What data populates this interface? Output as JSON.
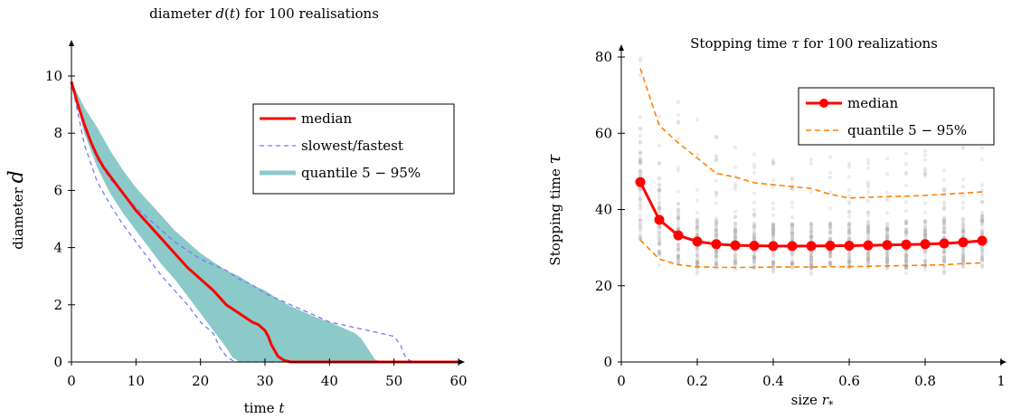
{
  "chart_data": [
    {
      "type": "line",
      "title": "diameter d(t) for 100 realisations",
      "xlabel": "time t",
      "ylabel": "diameter d",
      "xlim": [
        0,
        60
      ],
      "ylim": [
        0,
        11
      ],
      "xticks": [
        0,
        10,
        20,
        30,
        40,
        50,
        60
      ],
      "yticks": [
        0,
        2,
        4,
        6,
        8,
        10
      ],
      "grid": false,
      "legend_position": "right",
      "legend": [
        "median",
        "slowest/fastest",
        "quantile 5 − 95%"
      ],
      "series": [
        {
          "name": "median",
          "style": "line",
          "color": "#ff0000",
          "x": [
            0,
            1,
            2,
            3,
            4,
            5,
            6,
            7,
            8,
            9,
            10,
            12,
            14,
            16,
            18,
            20,
            22,
            24,
            26,
            28,
            29,
            30,
            30.5,
            31,
            32,
            33,
            34,
            60
          ],
          "y": [
            9.8,
            9.0,
            8.3,
            7.7,
            7.2,
            6.8,
            6.5,
            6.2,
            5.9,
            5.6,
            5.3,
            4.8,
            4.3,
            3.8,
            3.3,
            2.9,
            2.5,
            2.0,
            1.7,
            1.4,
            1.3,
            1.1,
            0.9,
            0.6,
            0.2,
            0.05,
            0,
            0
          ]
        },
        {
          "name": "slowest",
          "style": "dashed",
          "color": "#7777ff",
          "x": [
            0,
            2,
            4,
            6,
            8,
            10,
            12,
            14,
            16,
            18,
            20,
            22,
            24,
            26,
            28,
            30,
            32,
            34,
            36,
            38,
            40,
            42,
            44,
            46,
            48,
            50,
            51,
            51.5,
            52,
            53,
            60
          ],
          "y": [
            9.8,
            8.2,
            7.1,
            6.4,
            5.9,
            5.4,
            5.0,
            4.6,
            4.2,
            3.9,
            3.6,
            3.4,
            3.2,
            2.9,
            2.7,
            2.4,
            2.2,
            2.0,
            1.8,
            1.6,
            1.4,
            1.3,
            1.2,
            1.1,
            1.0,
            0.9,
            0.6,
            0.3,
            0.1,
            0,
            0
          ]
        },
        {
          "name": "fastest",
          "style": "dashed",
          "color": "#7777ff",
          "x": [
            0,
            2,
            4,
            6,
            8,
            10,
            12,
            14,
            16,
            18,
            20,
            22,
            23,
            24,
            25,
            26,
            27,
            28,
            29,
            30,
            60
          ],
          "y": [
            9.8,
            7.6,
            6.3,
            5.5,
            4.8,
            4.2,
            3.6,
            3.0,
            2.5,
            2.0,
            1.4,
            1.0,
            0.5,
            0.2,
            0.05,
            0,
            0,
            0,
            0,
            0,
            0
          ]
        }
      ],
      "band": {
        "name": "quantile 5 − 95%",
        "color": "#8ccaca",
        "x_upper": [
          0,
          2,
          4,
          6,
          8,
          10,
          12,
          14,
          16,
          18,
          20,
          22,
          24,
          26,
          28,
          30,
          32,
          34,
          36,
          38,
          40,
          42,
          44,
          45,
          46,
          47,
          48
        ],
        "upper": [
          9.8,
          8.9,
          8.2,
          7.4,
          6.7,
          6.1,
          5.6,
          5.1,
          4.6,
          4.2,
          3.8,
          3.5,
          3.2,
          3.0,
          2.7,
          2.5,
          2.2,
          1.95,
          1.75,
          1.55,
          1.4,
          1.2,
          1.0,
          0.8,
          0.45,
          0.1,
          0
        ],
        "x_lower": [
          0,
          2,
          4,
          6,
          8,
          10,
          12,
          14,
          16,
          18,
          20,
          22,
          24,
          25,
          26,
          27,
          48
        ],
        "lower": [
          9.8,
          8.0,
          6.8,
          5.9,
          5.2,
          4.6,
          4.0,
          3.4,
          2.9,
          2.3,
          1.7,
          1.1,
          0.5,
          0.15,
          0.02,
          0,
          0
        ]
      }
    },
    {
      "type": "scatter",
      "title": "Stopping time τ for 100 realizations",
      "xlabel": "size r*",
      "ylabel": "Stopping time τ",
      "xlim": [
        0,
        1
      ],
      "ylim": [
        0,
        82
      ],
      "xticks": [
        0,
        0.2,
        0.4,
        0.6,
        0.8,
        1
      ],
      "yticks": [
        0,
        20,
        40,
        60,
        80
      ],
      "grid": false,
      "legend_position": "top-right",
      "legend": [
        "median",
        "quantile 5 − 95%"
      ],
      "x": [
        0.05,
        0.1,
        0.15,
        0.2,
        0.25,
        0.3,
        0.35,
        0.4,
        0.45,
        0.5,
        0.55,
        0.6,
        0.65,
        0.7,
        0.75,
        0.8,
        0.85,
        0.9,
        0.95
      ],
      "series": [
        {
          "name": "median",
          "style": "line-marker",
          "color": "#ff0000",
          "values": [
            47.2,
            37.3,
            33.2,
            31.6,
            30.9,
            30.6,
            30.5,
            30.4,
            30.4,
            30.4,
            30.5,
            30.5,
            30.6,
            30.7,
            30.8,
            30.9,
            31.1,
            31.4,
            31.8
          ]
        },
        {
          "name": "quantile 95%",
          "style": "dashed",
          "color": "#ff8000",
          "values": [
            77.0,
            62.0,
            57.5,
            53.5,
            49.5,
            48.5,
            47.0,
            46.5,
            46.0,
            45.5,
            44.0,
            43.0,
            43.2,
            43.4,
            43.5,
            43.7,
            44.0,
            44.3,
            44.6
          ]
        },
        {
          "name": "quantile 5%",
          "style": "dashed",
          "color": "#ff8000",
          "values": [
            32.0,
            27.0,
            25.5,
            25.0,
            24.8,
            24.8,
            24.8,
            24.9,
            24.9,
            24.9,
            25.0,
            25.0,
            25.1,
            25.2,
            25.3,
            25.4,
            25.5,
            25.8,
            26.0
          ]
        }
      ],
      "scatter_points": {
        "color": "#aaaaaa",
        "min": [
          28,
          25,
          24,
          23,
          23,
          23,
          23,
          23,
          23,
          23,
          23,
          23,
          23,
          23,
          23,
          23,
          23,
          23,
          23
        ],
        "max": [
          83,
          75,
          70,
          65,
          60,
          58,
          56,
          55,
          55,
          54,
          54,
          54,
          55,
          55,
          56,
          56,
          57,
          58,
          58
        ]
      }
    }
  ]
}
